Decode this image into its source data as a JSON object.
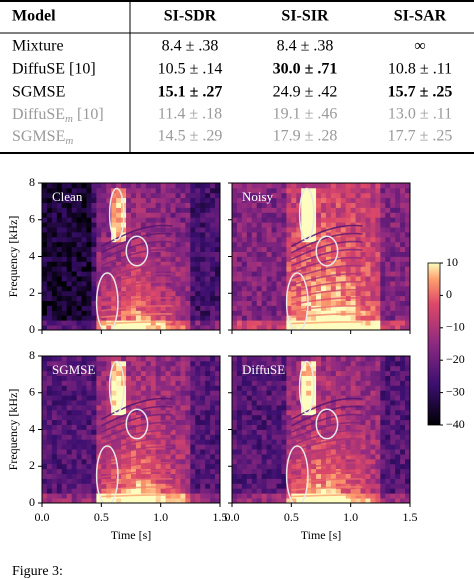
{
  "table": {
    "header": [
      "Model",
      "SI-SDR",
      "SI-SIR",
      "SI-SAR"
    ],
    "rows": [
      {
        "model": "Mixture",
        "cells": [
          "8.4 ± .38",
          "8.4 ± .38",
          "∞"
        ],
        "bold": [
          false,
          false,
          false
        ],
        "muted": false
      },
      {
        "model": "DiffuSE [10]",
        "cells": [
          "10.5 ± .14",
          "30.0 ± .71",
          "10.8 ± .11"
        ],
        "bold": [
          false,
          true,
          false
        ],
        "muted": false
      },
      {
        "model": "SGMSE",
        "cells": [
          "15.1 ± .27",
          "24.9 ± .42",
          "15.7 ± .25"
        ],
        "bold": [
          true,
          false,
          true
        ],
        "muted": false
      },
      {
        "model": {
          "text": "DiffuSE",
          "sub": "m",
          "after": " [10]"
        },
        "cells": [
          "11.4 ± .18",
          "19.1 ± .46",
          "13.0 ± .11"
        ],
        "bold": [
          false,
          false,
          false
        ],
        "muted": true
      },
      {
        "model": {
          "text": "SGMSE",
          "sub": "m",
          "after": ""
        },
        "cells": [
          "14.5 ± .29",
          "17.9 ± .28",
          "17.7 ± .25"
        ],
        "bold": [
          false,
          false,
          false
        ],
        "muted": true
      }
    ]
  },
  "figure": {
    "panels": [
      "Clean",
      "Noisy",
      "SGMSE",
      "DiffuSE"
    ],
    "y_label": "Frequency [kHz]",
    "x_label": "Time [s]",
    "xlim": [
      0,
      1.5
    ],
    "xticks": [
      {
        "value": 0,
        "label": "0.0"
      },
      {
        "value": 0.5,
        "label": "0.5"
      },
      {
        "value": 1,
        "label": "1.0"
      },
      {
        "value": 1.5,
        "label": "1.5"
      }
    ],
    "ylim": [
      0,
      8
    ],
    "yticks": [
      0,
      2,
      4,
      6,
      8
    ],
    "colorbar": {
      "lim": [
        -40,
        10
      ],
      "ticks": [
        10,
        {
          "value": 0,
          "label": "0"
        },
        {
          "value": -10,
          "label": "−10"
        },
        {
          "value": -20,
          "label": "−20"
        },
        {
          "value": -30,
          "label": "−30"
        },
        {
          "value": -40,
          "label": "−40"
        }
      ]
    }
  },
  "caption": "Figure 3:"
}
